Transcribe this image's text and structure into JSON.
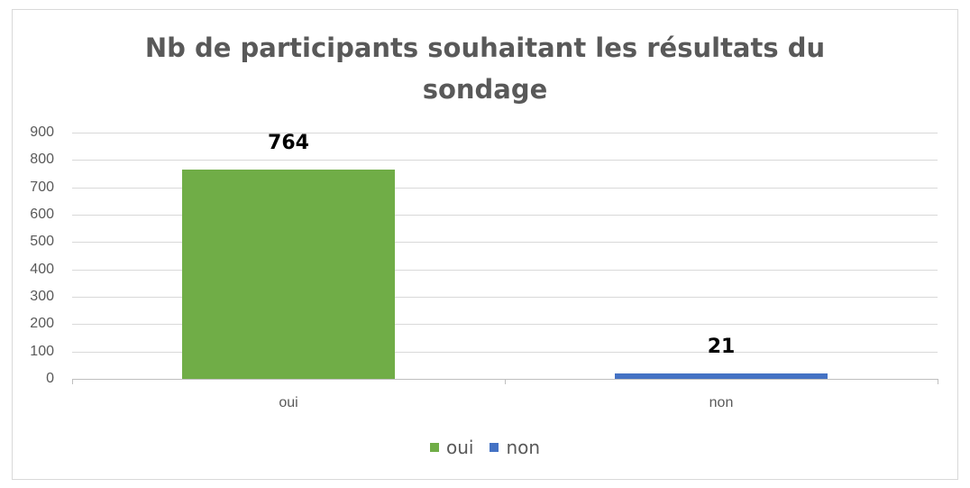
{
  "chart_data": {
    "type": "bar",
    "title": "Nb de participants souhaitant les résultats du sondage",
    "title_lines": [
      "Nb de participants souhaitant les résultats du",
      "sondage"
    ],
    "categories": [
      "oui",
      "non"
    ],
    "series": [
      {
        "name": "oui",
        "color": "#70ad47",
        "values": [
          764,
          null
        ]
      },
      {
        "name": "non",
        "color": "#4472c4",
        "values": [
          null,
          21
        ]
      }
    ],
    "values": [
      764,
      21
    ],
    "data_labels": [
      "764",
      "21"
    ],
    "xlabel": "",
    "ylabel": "",
    "ylim": [
      0,
      900
    ],
    "yticks": [
      0,
      100,
      200,
      300,
      400,
      500,
      600,
      700,
      800,
      900
    ],
    "grid": true,
    "legend_position": "bottom",
    "legend": [
      {
        "label": "oui",
        "color": "#70ad47"
      },
      {
        "label": "non",
        "color": "#4472c4"
      }
    ]
  }
}
